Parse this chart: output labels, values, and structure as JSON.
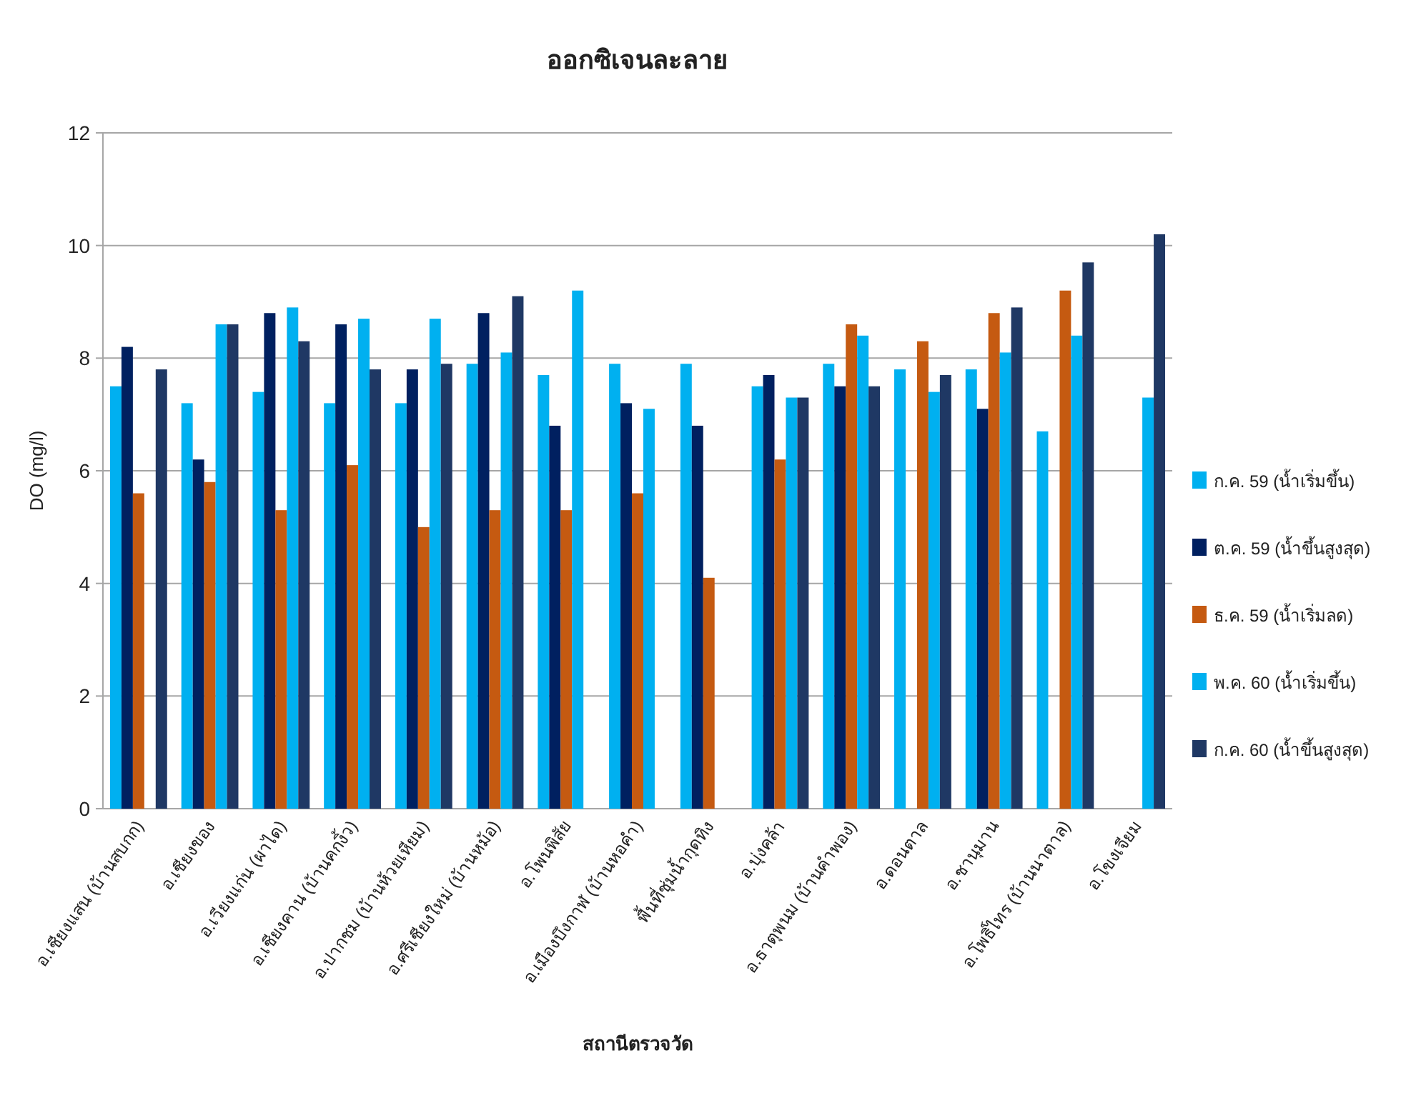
{
  "chart_data": {
    "type": "bar",
    "title": "ออกซิเจนละลาย",
    "xlabel": "สถานีตรวจวัด",
    "ylabel": "DO (mg/l)",
    "categories": [
      "อ.เชียงแสน (บ้านสบกก)",
      "อ.เชียงของ",
      "อ.เวียงแก่น (ผาได)",
      "อ.เชียงคาน (บ้านคกงิ้ว)",
      "อ.ปากชม (บ้านห้วยเหียม)",
      "อ.ศรีเชียงใหม่ (บ้านหม้อ)",
      "อ.โพนพิสัย",
      "อ.เมืองบึงกาฬ (บ้านหอคำ)",
      "พื้นที่ชุ่มน้ำกุดทิง",
      "อ.บุ่งคล้า",
      "อ.ธาตุพนม (บ้านคำพอง)",
      "อ.ดอนตาล",
      "อ.ชานุมาน",
      "อ.โพธิ์ไทร (บ้านนาตาล)",
      "อ.โขงเจียม"
    ],
    "series": [
      {
        "name": "ก.ค. 59 (น้ำเริ่มขึ้น)",
        "color": "#00b0f0",
        "values": [
          7.5,
          7.2,
          7.4,
          7.2,
          7.2,
          7.9,
          7.7,
          7.9,
          7.9,
          7.5,
          7.9,
          7.8,
          7.8,
          6.7,
          null
        ]
      },
      {
        "name": "ต.ค. 59 (น้ำขึ้นสูงสุด)",
        "color": "#002060",
        "values": [
          8.2,
          6.2,
          8.8,
          8.6,
          7.8,
          8.8,
          6.8,
          7.2,
          6.8,
          7.7,
          7.5,
          null,
          7.1,
          null,
          null
        ]
      },
      {
        "name": "ธ.ค. 59 (น้ำเริ่มลด)",
        "color": "#c55a11",
        "values": [
          5.6,
          5.8,
          5.3,
          6.1,
          5.0,
          5.3,
          5.3,
          5.6,
          4.1,
          6.2,
          8.6,
          8.3,
          8.8,
          9.2,
          null
        ]
      },
      {
        "name": "พ.ค. 60 (น้ำเริ่มขึ้น)",
        "color": "#00b0f0",
        "values": [
          null,
          8.6,
          8.9,
          8.7,
          8.7,
          8.1,
          9.2,
          7.1,
          null,
          7.3,
          8.4,
          7.4,
          8.1,
          8.4,
          7.3
        ]
      },
      {
        "name": "ก.ค. 60 (น้ำขึ้นสูงสุด)",
        "color": "#1f3864",
        "values": [
          7.8,
          8.6,
          8.3,
          7.8,
          7.9,
          9.1,
          null,
          null,
          null,
          7.3,
          7.5,
          7.7,
          8.9,
          9.7,
          10.2
        ]
      }
    ],
    "ylim": [
      0,
      12
    ],
    "yticks": [
      0,
      2,
      4,
      6,
      8,
      10,
      12
    ],
    "grid": "y",
    "legend": "right"
  }
}
